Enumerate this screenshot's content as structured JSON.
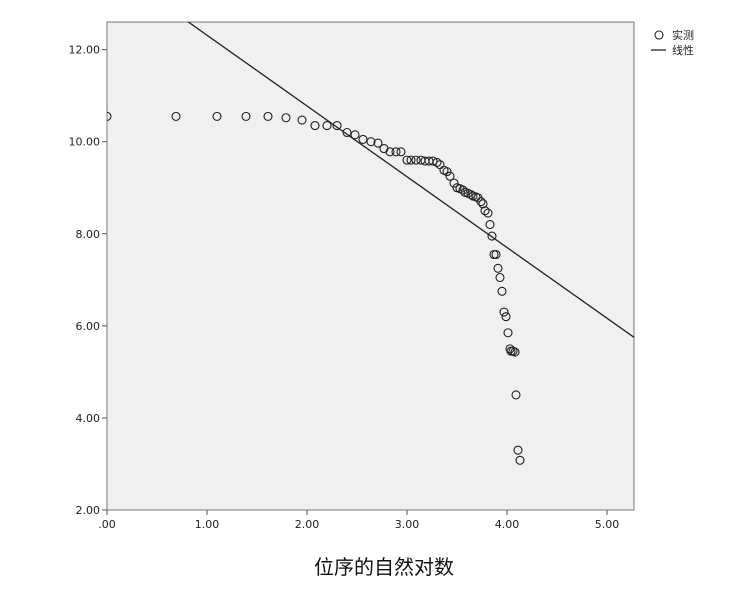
{
  "chart_data": {
    "type": "scatter",
    "title": "",
    "xlabel": "位序的自然对数",
    "ylabel": "",
    "xlim": [
      0,
      5.27
    ],
    "ylim": [
      2,
      12.6
    ],
    "grid": false,
    "legend_position": "top-right-outside",
    "x_ticks": [
      ".00",
      "1.00",
      "2.00",
      "3.00",
      "4.00",
      "5.00"
    ],
    "y_ticks": [
      "2.00",
      "4.00",
      "6.00",
      "8.00",
      "10.00",
      "12.00"
    ],
    "colors": {
      "plot_bg": "#f0f0f0",
      "marks": "#222222"
    },
    "series": [
      {
        "name": "实测",
        "kind": "points",
        "x": [
          0.0,
          0.69,
          1.1,
          1.39,
          1.61,
          1.79,
          1.95,
          2.08,
          2.2,
          2.3,
          2.4,
          2.48,
          2.56,
          2.64,
          2.71,
          2.77,
          2.83,
          2.89,
          2.94,
          3.0,
          3.04,
          3.09,
          3.14,
          3.18,
          3.22,
          3.26,
          3.3,
          3.33,
          3.37,
          3.4,
          3.43,
          3.47,
          3.5,
          3.53,
          3.56,
          3.58,
          3.61,
          3.64,
          3.66,
          3.69,
          3.71,
          3.74,
          3.76,
          3.78,
          3.81,
          3.83,
          3.85,
          3.87,
          3.89,
          3.91,
          3.93,
          3.95,
          3.97,
          3.99,
          4.01,
          4.03,
          4.04,
          4.06,
          4.08,
          4.09,
          4.11,
          4.13
        ],
        "y": [
          10.55,
          10.55,
          10.55,
          10.55,
          10.55,
          10.52,
          10.47,
          10.35,
          10.35,
          10.35,
          10.2,
          10.15,
          10.05,
          10.0,
          9.97,
          9.85,
          9.78,
          9.78,
          9.78,
          9.6,
          9.6,
          9.6,
          9.6,
          9.58,
          9.58,
          9.58,
          9.55,
          9.5,
          9.38,
          9.35,
          9.25,
          9.1,
          9.0,
          8.98,
          8.95,
          8.9,
          8.88,
          8.85,
          8.82,
          8.8,
          8.78,
          8.7,
          8.65,
          8.5,
          8.45,
          8.2,
          7.95,
          7.55,
          7.55,
          7.25,
          7.05,
          6.75,
          6.3,
          6.2,
          5.85,
          5.5,
          5.45,
          5.45,
          5.43,
          4.5,
          3.3,
          3.08
        ]
      },
      {
        "name": "线性",
        "kind": "line",
        "x": [
          0.0,
          5.27
        ],
        "y": [
          13.85,
          5.75
        ]
      }
    ]
  }
}
